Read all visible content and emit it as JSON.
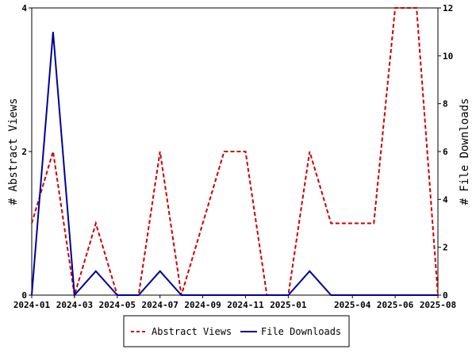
{
  "chart_data": {
    "type": "line",
    "x": [
      "2024-01",
      "2024-02",
      "2024-03",
      "2024-04",
      "2024-05",
      "2024-06",
      "2024-07",
      "2024-08",
      "2024-09",
      "2024-10",
      "2024-11",
      "2024-12",
      "2025-01",
      "2025-02",
      "2025-03",
      "2025-04",
      "2025-05",
      "2025-06",
      "2025-07",
      "2025-08"
    ],
    "x_ticks": [
      "2024-01",
      "2024-03",
      "2024-05",
      "2024-07",
      "2024-09",
      "2024-11",
      "2025-01",
      "2025-04",
      "2025-06",
      "2025-08"
    ],
    "ylabel": "# Abstract Views",
    "y2label": "# File Downloads",
    "ylim": [
      0,
      4
    ],
    "y2lim": [
      0,
      12
    ],
    "y_ticks": [
      0,
      2,
      4
    ],
    "y2_ticks": [
      0,
      2,
      4,
      6,
      8,
      10,
      12
    ],
    "series": [
      {
        "name": "Abstract Views",
        "axis": "left",
        "color": "#cc0000",
        "style": "dashed",
        "values": [
          1,
          2,
          0,
          1,
          0,
          0,
          2,
          0,
          1,
          2,
          2,
          0,
          0,
          2,
          1,
          1,
          1,
          4,
          4,
          0
        ]
      },
      {
        "name": "File Downloads",
        "axis": "right",
        "color": "#000099",
        "style": "solid",
        "values": [
          0,
          11,
          0,
          1,
          0,
          0,
          1,
          0,
          0,
          0,
          0,
          0,
          0,
          1,
          0,
          0,
          0,
          0,
          0,
          0
        ]
      }
    ],
    "legend": "bottom-center"
  }
}
